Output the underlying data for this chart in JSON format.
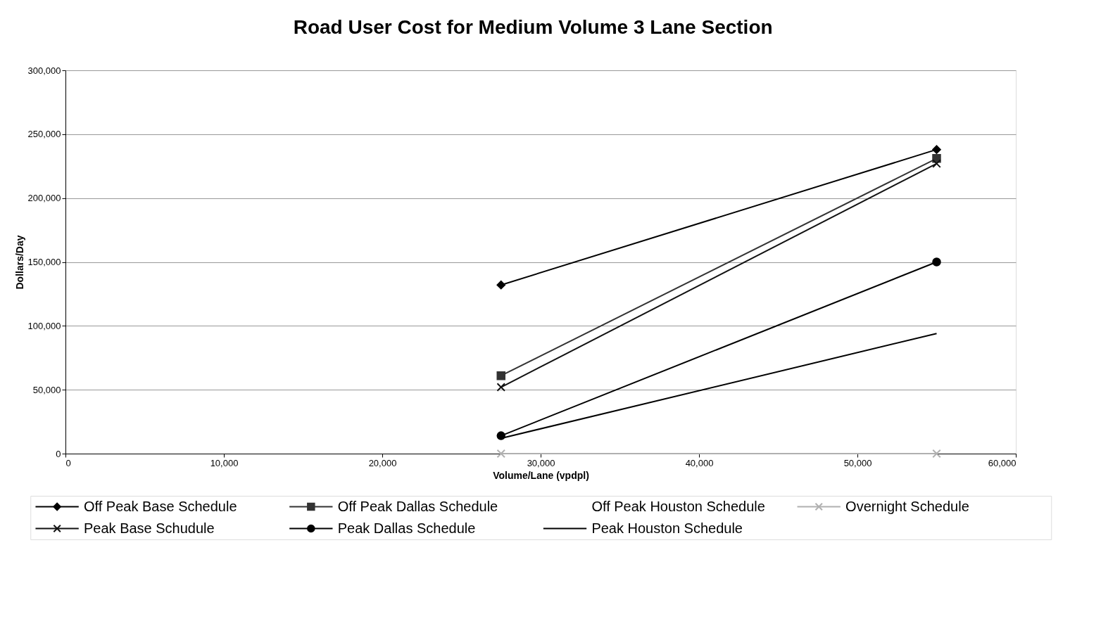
{
  "chart_data": {
    "type": "line",
    "title": "Road User Cost for Medium Volume 3 Lane Section",
    "xlabel": "Volume/Lane (vpdpl)",
    "ylabel": "Dollars/Day",
    "x": [
      27500,
      55000
    ],
    "series": [
      {
        "name": "Off Peak Base Schedule",
        "color": "#000000",
        "marker": "diamond",
        "values": [
          132000,
          238000
        ]
      },
      {
        "name": "Off Peak Dallas Schedule",
        "color": "#333333",
        "marker": "square",
        "values": [
          61000,
          231000
        ]
      },
      {
        "name": "Off Peak Houston Schedule",
        "marker": "none",
        "values": [
          null,
          null
        ]
      },
      {
        "name": "Overnight Schedule",
        "color": "#b0b0b0",
        "marker": "cross",
        "values": [
          0,
          0
        ]
      },
      {
        "name": "Peak Base Schudule",
        "color": "#111111",
        "marker": "cross",
        "values": [
          52000,
          227000
        ]
      },
      {
        "name": "Peak Dallas Schedule",
        "color": "#000000",
        "marker": "circle",
        "values": [
          14000,
          150000
        ]
      },
      {
        "name": "Peak Houston Schedule",
        "color": "#000000",
        "marker": "none",
        "values": [
          12000,
          94000
        ]
      }
    ],
    "xlim": [
      0,
      60000
    ],
    "xticks": [
      {
        "value": 0,
        "label": "0"
      },
      {
        "value": 10000,
        "label": "10,000"
      },
      {
        "value": 20000,
        "label": "20,000"
      },
      {
        "value": 30000,
        "label": "30,000"
      },
      {
        "value": 40000,
        "label": "40,000"
      },
      {
        "value": 50000,
        "label": "50,000"
      },
      {
        "value": 60000,
        "label": "60,000"
      }
    ],
    "ylim": [
      0,
      300000
    ],
    "yticks": [
      {
        "value": 0,
        "label": "0"
      },
      {
        "value": 50000,
        "label": "50,000"
      },
      {
        "value": 100000,
        "label": "100,000"
      },
      {
        "value": 150000,
        "label": "150,000"
      },
      {
        "value": 200000,
        "label": "200,000"
      },
      {
        "value": 250000,
        "label": "250,000"
      },
      {
        "value": 300000,
        "label": "300,000"
      }
    ],
    "grid": "y",
    "legend": "bottom"
  }
}
